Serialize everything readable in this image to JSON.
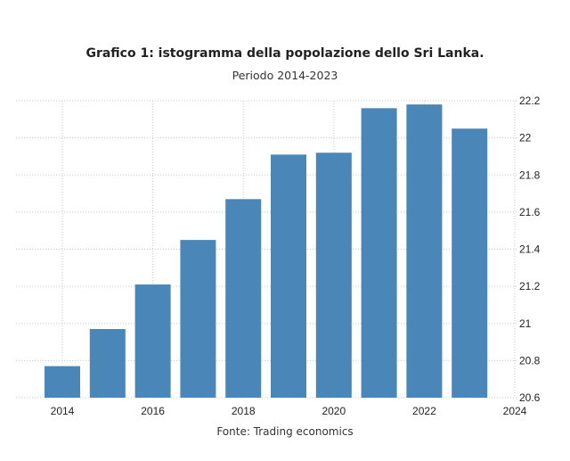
{
  "chart_data": {
    "type": "bar",
    "title": "Grafico 1: istogramma della popolazione dello Sri Lanka.",
    "subtitle": "Periodo 2014-2023",
    "source": "Fonte: Trading economics",
    "xlabel": "",
    "ylabel": "",
    "categories": [
      2014,
      2015,
      2016,
      2017,
      2018,
      2019,
      2020,
      2021,
      2022,
      2023
    ],
    "values": [
      20.77,
      20.97,
      21.21,
      21.45,
      21.67,
      21.91,
      21.92,
      22.16,
      22.18,
      22.05
    ],
    "ylim": [
      20.6,
      22.2
    ],
    "xlim": [
      2014,
      2024
    ],
    "yticks": [
      "20.6",
      "20.8",
      "21",
      "21.2",
      "21.4",
      "21.6",
      "21.8",
      "22",
      "22.2"
    ],
    "xticks": [
      "2014",
      "2016",
      "2018",
      "2020",
      "2022",
      "2024"
    ],
    "grid": true,
    "y_axis_side": "right",
    "bar_color": "#4a87b8"
  }
}
